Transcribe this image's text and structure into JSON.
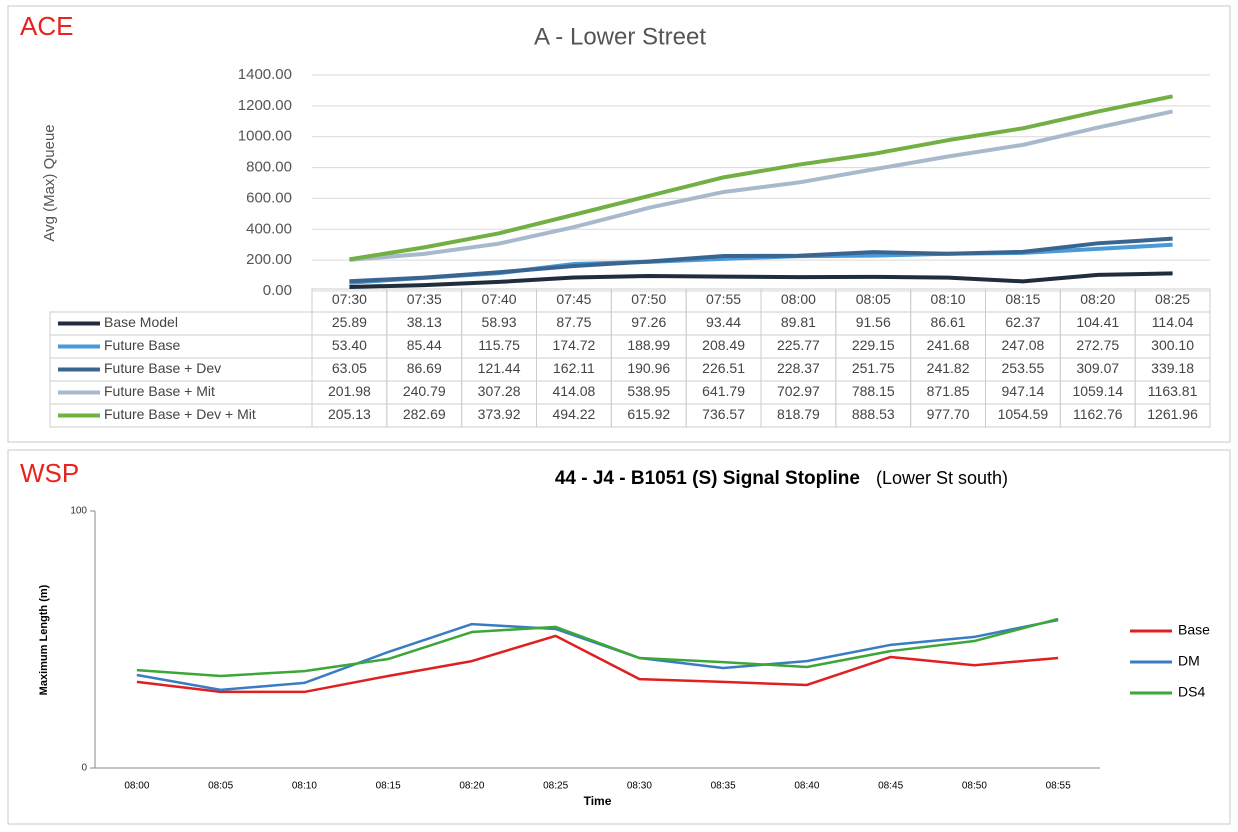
{
  "chart_data": [
    {
      "type": "line",
      "source": "ACE",
      "title": "A - Lower Street",
      "y_label": "Avg (Max) Queue",
      "categories": [
        "07:30",
        "07:35",
        "07:40",
        "07:45",
        "07:50",
        "07:55",
        "08:00",
        "08:05",
        "08:10",
        "08:15",
        "08:20",
        "08:25"
      ],
      "ylim": [
        0,
        1400
      ],
      "yticks": [
        {
          "value": 0,
          "label": "0.00"
        },
        {
          "value": 200,
          "label": "200.00"
        },
        {
          "value": 400,
          "label": "400.00"
        },
        {
          "value": 600,
          "label": "600.00"
        },
        {
          "value": 800,
          "label": "800.00"
        },
        {
          "value": 1000,
          "label": "1000.00"
        },
        {
          "value": 1200,
          "label": "1200.00"
        },
        {
          "value": 1400,
          "label": "1400.00"
        }
      ],
      "grid": true,
      "data_table": true,
      "series": [
        {
          "name": "Base Model",
          "color": "#1f2d3d",
          "values": [
            25.89,
            38.13,
            58.93,
            87.75,
            97.26,
            93.44,
            89.81,
            91.56,
            86.61,
            62.37,
            104.41,
            114.04
          ],
          "value_labels": [
            "25.89",
            "38.13",
            "58.93",
            "87.75",
            "97.26",
            "93.44",
            "89.81",
            "91.56",
            "86.61",
            "62.37",
            "104.41",
            "114.04"
          ]
        },
        {
          "name": "Future Base",
          "color": "#4a9ad8",
          "values": [
            53.4,
            85.44,
            115.75,
            174.72,
            188.99,
            208.49,
            225.77,
            229.15,
            241.68,
            247.08,
            272.75,
            300.1
          ],
          "value_labels": [
            "53.40",
            "85.44",
            "115.75",
            "174.72",
            "188.99",
            "208.49",
            "225.77",
            "229.15",
            "241.68",
            "247.08",
            "272.75",
            "300.10"
          ]
        },
        {
          "name": "Future Base + Dev",
          "color": "#3a6591",
          "values": [
            63.05,
            86.69,
            121.44,
            162.11,
            190.96,
            226.51,
            228.37,
            251.75,
            241.82,
            253.55,
            309.07,
            339.18
          ],
          "value_labels": [
            "63.05",
            "86.69",
            "121.44",
            "162.11",
            "190.96",
            "226.51",
            "228.37",
            "251.75",
            "241.82",
            "253.55",
            "309.07",
            "339.18"
          ]
        },
        {
          "name": "Future Base + Mit",
          "color": "#a9b9cc",
          "values": [
            201.98,
            240.79,
            307.28,
            414.08,
            538.95,
            641.79,
            702.97,
            788.15,
            871.85,
            947.14,
            1059.14,
            1163.81
          ],
          "value_labels": [
            "201.98",
            "240.79",
            "307.28",
            "414.08",
            "538.95",
            "641.79",
            "702.97",
            "788.15",
            "871.85",
            "947.14",
            "1059.14",
            "1163.81"
          ]
        },
        {
          "name": "Future Base + Dev + Mit",
          "color": "#72b043",
          "values": [
            205.13,
            282.69,
            373.92,
            494.22,
            615.92,
            736.57,
            818.79,
            888.53,
            977.7,
            1054.59,
            1162.76,
            1261.96
          ],
          "value_labels": [
            "205.13",
            "282.69",
            "373.92",
            "494.22",
            "615.92",
            "736.57",
            "818.79",
            "888.53",
            "977.70",
            "1054.59",
            "1162.76",
            "1261.96"
          ]
        }
      ]
    },
    {
      "type": "line",
      "source": "WSP",
      "title": "44 - J4 - B1051 (S) Signal Stopline",
      "subtitle": "(Lower St south)",
      "y_label": "Maximum Length (m)",
      "x_label": "Time",
      "categories": [
        "08:00",
        "08:05",
        "08:10",
        "08:15",
        "08:20",
        "08:25",
        "08:30",
        "08:35",
        "08:40",
        "08:45",
        "08:50",
        "08:55"
      ],
      "ylim": [
        0,
        100
      ],
      "yticks": [
        0,
        100
      ],
      "grid": false,
      "legend": "right",
      "series": [
        {
          "name": "Base",
          "color": "#e02020",
          "values": [
            33.5,
            29.6,
            29.6,
            35.8,
            41.6,
            51.4,
            34.6,
            33.5,
            32.3,
            43.2,
            40,
            42.8
          ]
        },
        {
          "name": "DM",
          "color": "#3a7cc4",
          "values": [
            36.2,
            30.4,
            33.1,
            45.1,
            56,
            54.1,
            42.8,
            38.9,
            41.6,
            47.9,
            51,
            57.6
          ]
        },
        {
          "name": "DS4",
          "color": "#3ca636",
          "values": [
            38.1,
            35.8,
            37.7,
            42.4,
            52.9,
            54.9,
            42.8,
            41.2,
            39.3,
            45.5,
            49.4,
            58
          ]
        }
      ]
    }
  ]
}
